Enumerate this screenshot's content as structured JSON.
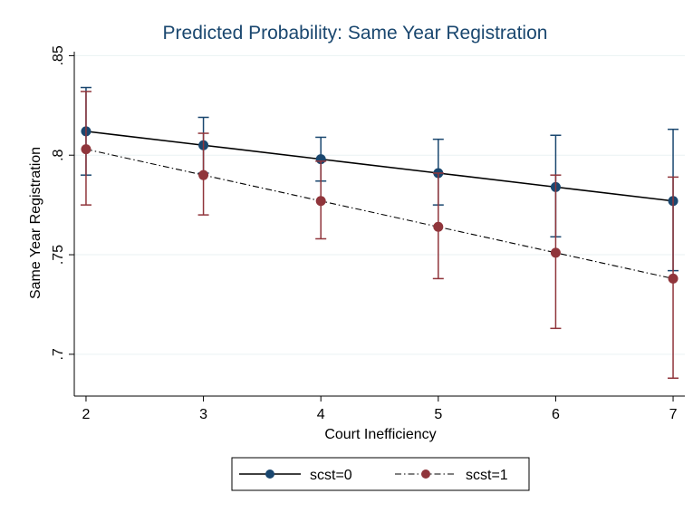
{
  "chart_data": {
    "type": "line",
    "title": "Predicted Probability: Same Year Registration",
    "xlabel": "Court Inefficiency",
    "ylabel": "Same Year Registration",
    "x": [
      2,
      3,
      4,
      5,
      6,
      7
    ],
    "xlim": [
      1.9,
      7.1
    ],
    "ylim": [
      0.679,
      0.852
    ],
    "x_ticks": [
      2,
      3,
      4,
      5,
      6,
      7
    ],
    "x_tick_labels": [
      "2",
      "3",
      "4",
      "5",
      "6",
      "7"
    ],
    "y_ticks": [
      0.7,
      0.75,
      0.8,
      0.85
    ],
    "y_tick_labels": [
      ".7",
      ".75",
      ".8",
      ".85"
    ],
    "grid": true,
    "legend_position": "bottom",
    "series": [
      {
        "name": "scst=0",
        "color": "#1a476f",
        "line_style": "solid",
        "values": [
          0.812,
          0.805,
          0.798,
          0.791,
          0.784,
          0.777
        ],
        "ci_low": [
          0.79,
          0.791,
          0.787,
          0.775,
          0.759,
          0.742
        ],
        "ci_high": [
          0.834,
          0.819,
          0.809,
          0.808,
          0.81,
          0.813
        ]
      },
      {
        "name": "scst=1",
        "color": "#90353b",
        "line_style": "dash-dot",
        "values": [
          0.803,
          0.79,
          0.777,
          0.764,
          0.751,
          0.738
        ],
        "ci_low": [
          0.775,
          0.77,
          0.758,
          0.738,
          0.713,
          0.688
        ],
        "ci_high": [
          0.832,
          0.811,
          0.797,
          0.791,
          0.79,
          0.789
        ]
      }
    ]
  }
}
